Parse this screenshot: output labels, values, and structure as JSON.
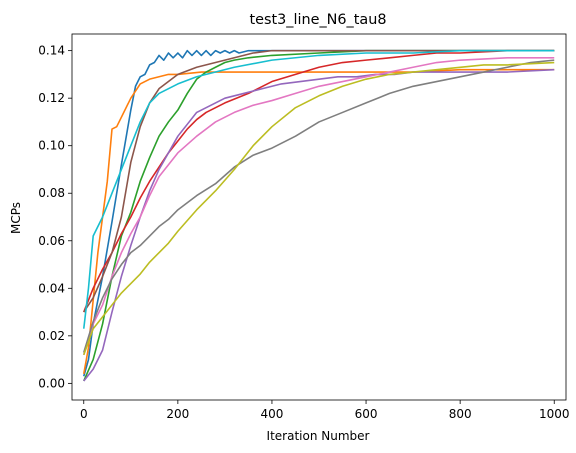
{
  "chart_data": {
    "type": "line",
    "title": "test3_line_N6_tau8",
    "xlabel": "Iteration Number",
    "ylabel": "MCPs",
    "xlim": [
      -25,
      1025
    ],
    "ylim": [
      -0.007,
      0.147
    ],
    "xticks": [
      0,
      200,
      400,
      600,
      800,
      1000
    ],
    "xtick_labels": [
      "0",
      "200",
      "400",
      "600",
      "800",
      "1000"
    ],
    "yticks": [
      0.0,
      0.02,
      0.04,
      0.06,
      0.08,
      0.1,
      0.12,
      0.14
    ],
    "ytick_labels": [
      "0.00",
      "0.02",
      "0.04",
      "0.06",
      "0.08",
      "0.10",
      "0.12",
      "0.14"
    ],
    "grid": false,
    "series": [
      {
        "color": "#1f77b4",
        "points": [
          [
            0,
            0.003
          ],
          [
            10,
            0.01
          ],
          [
            20,
            0.025
          ],
          [
            40,
            0.045
          ],
          [
            60,
            0.068
          ],
          [
            80,
            0.092
          ],
          [
            100,
            0.115
          ],
          [
            110,
            0.125
          ],
          [
            120,
            0.129
          ],
          [
            130,
            0.13
          ],
          [
            140,
            0.134
          ],
          [
            150,
            0.135
          ],
          [
            160,
            0.138
          ],
          [
            170,
            0.136
          ],
          [
            180,
            0.139
          ],
          [
            190,
            0.137
          ],
          [
            200,
            0.139
          ],
          [
            210,
            0.137
          ],
          [
            220,
            0.14
          ],
          [
            230,
            0.138
          ],
          [
            240,
            0.14
          ],
          [
            250,
            0.138
          ],
          [
            260,
            0.14
          ],
          [
            270,
            0.138
          ],
          [
            280,
            0.14
          ],
          [
            290,
            0.139
          ],
          [
            300,
            0.14
          ],
          [
            310,
            0.139
          ],
          [
            320,
            0.14
          ],
          [
            330,
            0.139
          ],
          [
            350,
            0.14
          ],
          [
            400,
            0.14
          ],
          [
            500,
            0.14
          ],
          [
            600,
            0.14
          ],
          [
            800,
            0.14
          ],
          [
            1000,
            0.14
          ]
        ]
      },
      {
        "color": "#ff7f0e",
        "points": [
          [
            0,
            0.004
          ],
          [
            10,
            0.015
          ],
          [
            20,
            0.035
          ],
          [
            30,
            0.055
          ],
          [
            40,
            0.07
          ],
          [
            50,
            0.085
          ],
          [
            60,
            0.107
          ],
          [
            70,
            0.108
          ],
          [
            80,
            0.112
          ],
          [
            100,
            0.12
          ],
          [
            120,
            0.126
          ],
          [
            140,
            0.128
          ],
          [
            160,
            0.129
          ],
          [
            180,
            0.13
          ],
          [
            200,
            0.13
          ],
          [
            250,
            0.131
          ],
          [
            300,
            0.131
          ],
          [
            400,
            0.131
          ],
          [
            500,
            0.131
          ],
          [
            600,
            0.131
          ],
          [
            700,
            0.131
          ],
          [
            800,
            0.132
          ],
          [
            900,
            0.132
          ],
          [
            1000,
            0.132
          ]
        ]
      },
      {
        "color": "#2ca02c",
        "points": [
          [
            0,
            0.001
          ],
          [
            20,
            0.01
          ],
          [
            40,
            0.025
          ],
          [
            60,
            0.045
          ],
          [
            80,
            0.062
          ],
          [
            100,
            0.072
          ],
          [
            120,
            0.085
          ],
          [
            140,
            0.095
          ],
          [
            160,
            0.104
          ],
          [
            180,
            0.11
          ],
          [
            200,
            0.115
          ],
          [
            220,
            0.122
          ],
          [
            240,
            0.128
          ],
          [
            260,
            0.131
          ],
          [
            280,
            0.133
          ],
          [
            300,
            0.135
          ],
          [
            320,
            0.136
          ],
          [
            350,
            0.137
          ],
          [
            400,
            0.138
          ],
          [
            500,
            0.139
          ],
          [
            600,
            0.14
          ],
          [
            800,
            0.14
          ],
          [
            1000,
            0.14
          ]
        ]
      },
      {
        "color": "#d62728",
        "points": [
          [
            0,
            0.03
          ],
          [
            20,
            0.04
          ],
          [
            40,
            0.048
          ],
          [
            60,
            0.055
          ],
          [
            80,
            0.063
          ],
          [
            100,
            0.07
          ],
          [
            120,
            0.078
          ],
          [
            140,
            0.085
          ],
          [
            160,
            0.091
          ],
          [
            180,
            0.097
          ],
          [
            200,
            0.102
          ],
          [
            220,
            0.107
          ],
          [
            240,
            0.111
          ],
          [
            260,
            0.114
          ],
          [
            280,
            0.116
          ],
          [
            300,
            0.118
          ],
          [
            350,
            0.122
          ],
          [
            400,
            0.127
          ],
          [
            450,
            0.13
          ],
          [
            500,
            0.133
          ],
          [
            550,
            0.135
          ],
          [
            600,
            0.136
          ],
          [
            650,
            0.137
          ],
          [
            700,
            0.138
          ],
          [
            750,
            0.139
          ],
          [
            800,
            0.139
          ],
          [
            900,
            0.14
          ],
          [
            1000,
            0.14
          ]
        ]
      },
      {
        "color": "#9467bd",
        "points": [
          [
            0,
            0.001
          ],
          [
            20,
            0.006
          ],
          [
            40,
            0.014
          ],
          [
            60,
            0.03
          ],
          [
            80,
            0.045
          ],
          [
            100,
            0.058
          ],
          [
            120,
            0.07
          ],
          [
            140,
            0.081
          ],
          [
            160,
            0.09
          ],
          [
            180,
            0.097
          ],
          [
            200,
            0.104
          ],
          [
            220,
            0.109
          ],
          [
            240,
            0.114
          ],
          [
            260,
            0.116
          ],
          [
            280,
            0.118
          ],
          [
            300,
            0.12
          ],
          [
            340,
            0.122
          ],
          [
            380,
            0.124
          ],
          [
            420,
            0.126
          ],
          [
            460,
            0.127
          ],
          [
            500,
            0.128
          ],
          [
            540,
            0.129
          ],
          [
            580,
            0.129
          ],
          [
            620,
            0.13
          ],
          [
            660,
            0.13
          ],
          [
            700,
            0.131
          ],
          [
            800,
            0.131
          ],
          [
            900,
            0.131
          ],
          [
            1000,
            0.132
          ]
        ]
      },
      {
        "color": "#8c564b",
        "points": [
          [
            0,
            0.03
          ],
          [
            20,
            0.036
          ],
          [
            40,
            0.045
          ],
          [
            60,
            0.055
          ],
          [
            80,
            0.07
          ],
          [
            100,
            0.093
          ],
          [
            120,
            0.108
          ],
          [
            140,
            0.118
          ],
          [
            160,
            0.124
          ],
          [
            180,
            0.127
          ],
          [
            200,
            0.13
          ],
          [
            240,
            0.133
          ],
          [
            280,
            0.135
          ],
          [
            320,
            0.137
          ],
          [
            360,
            0.139
          ],
          [
            400,
            0.14
          ],
          [
            500,
            0.14
          ],
          [
            600,
            0.14
          ],
          [
            800,
            0.14
          ],
          [
            1000,
            0.14
          ]
        ]
      },
      {
        "color": "#e377c2",
        "points": [
          [
            0,
            0.012
          ],
          [
            20,
            0.025
          ],
          [
            40,
            0.033
          ],
          [
            60,
            0.045
          ],
          [
            80,
            0.055
          ],
          [
            100,
            0.063
          ],
          [
            120,
            0.07
          ],
          [
            140,
            0.079
          ],
          [
            160,
            0.087
          ],
          [
            180,
            0.092
          ],
          [
            200,
            0.097
          ],
          [
            240,
            0.104
          ],
          [
            280,
            0.11
          ],
          [
            320,
            0.114
          ],
          [
            360,
            0.117
          ],
          [
            400,
            0.119
          ],
          [
            450,
            0.122
          ],
          [
            500,
            0.125
          ],
          [
            550,
            0.127
          ],
          [
            600,
            0.129
          ],
          [
            650,
            0.131
          ],
          [
            700,
            0.133
          ],
          [
            750,
            0.135
          ],
          [
            800,
            0.136
          ],
          [
            900,
            0.137
          ],
          [
            1000,
            0.137
          ]
        ]
      },
      {
        "color": "#7f7f7f",
        "points": [
          [
            0,
            0.013
          ],
          [
            20,
            0.026
          ],
          [
            40,
            0.036
          ],
          [
            60,
            0.044
          ],
          [
            80,
            0.05
          ],
          [
            100,
            0.055
          ],
          [
            120,
            0.058
          ],
          [
            140,
            0.062
          ],
          [
            160,
            0.066
          ],
          [
            180,
            0.069
          ],
          [
            200,
            0.073
          ],
          [
            220,
            0.076
          ],
          [
            240,
            0.079
          ],
          [
            280,
            0.084
          ],
          [
            320,
            0.091
          ],
          [
            360,
            0.096
          ],
          [
            400,
            0.099
          ],
          [
            450,
            0.104
          ],
          [
            500,
            0.11
          ],
          [
            550,
            0.114
          ],
          [
            600,
            0.118
          ],
          [
            650,
            0.122
          ],
          [
            700,
            0.125
          ],
          [
            750,
            0.127
          ],
          [
            800,
            0.129
          ],
          [
            850,
            0.131
          ],
          [
            900,
            0.133
          ],
          [
            950,
            0.135
          ],
          [
            1000,
            0.136
          ]
        ]
      },
      {
        "color": "#bcbd22",
        "points": [
          [
            0,
            0.012
          ],
          [
            20,
            0.023
          ],
          [
            40,
            0.028
          ],
          [
            60,
            0.033
          ],
          [
            80,
            0.038
          ],
          [
            100,
            0.042
          ],
          [
            120,
            0.046
          ],
          [
            140,
            0.051
          ],
          [
            160,
            0.055
          ],
          [
            180,
            0.059
          ],
          [
            200,
            0.064
          ],
          [
            240,
            0.073
          ],
          [
            280,
            0.081
          ],
          [
            320,
            0.09
          ],
          [
            360,
            0.1
          ],
          [
            400,
            0.108
          ],
          [
            450,
            0.116
          ],
          [
            500,
            0.121
          ],
          [
            550,
            0.125
          ],
          [
            600,
            0.128
          ],
          [
            650,
            0.13
          ],
          [
            700,
            0.131
          ],
          [
            750,
            0.132
          ],
          [
            800,
            0.133
          ],
          [
            850,
            0.134
          ],
          [
            900,
            0.134
          ],
          [
            1000,
            0.135
          ]
        ]
      },
      {
        "color": "#17becf",
        "points": [
          [
            0,
            0.023
          ],
          [
            10,
            0.04
          ],
          [
            20,
            0.062
          ],
          [
            40,
            0.07
          ],
          [
            60,
            0.08
          ],
          [
            80,
            0.09
          ],
          [
            100,
            0.1
          ],
          [
            120,
            0.11
          ],
          [
            140,
            0.118
          ],
          [
            160,
            0.122
          ],
          [
            180,
            0.124
          ],
          [
            200,
            0.126
          ],
          [
            240,
            0.129
          ],
          [
            280,
            0.131
          ],
          [
            320,
            0.133
          ],
          [
            400,
            0.136
          ],
          [
            500,
            0.138
          ],
          [
            600,
            0.139
          ],
          [
            700,
            0.139
          ],
          [
            800,
            0.14
          ],
          [
            1000,
            0.14
          ]
        ]
      }
    ]
  }
}
